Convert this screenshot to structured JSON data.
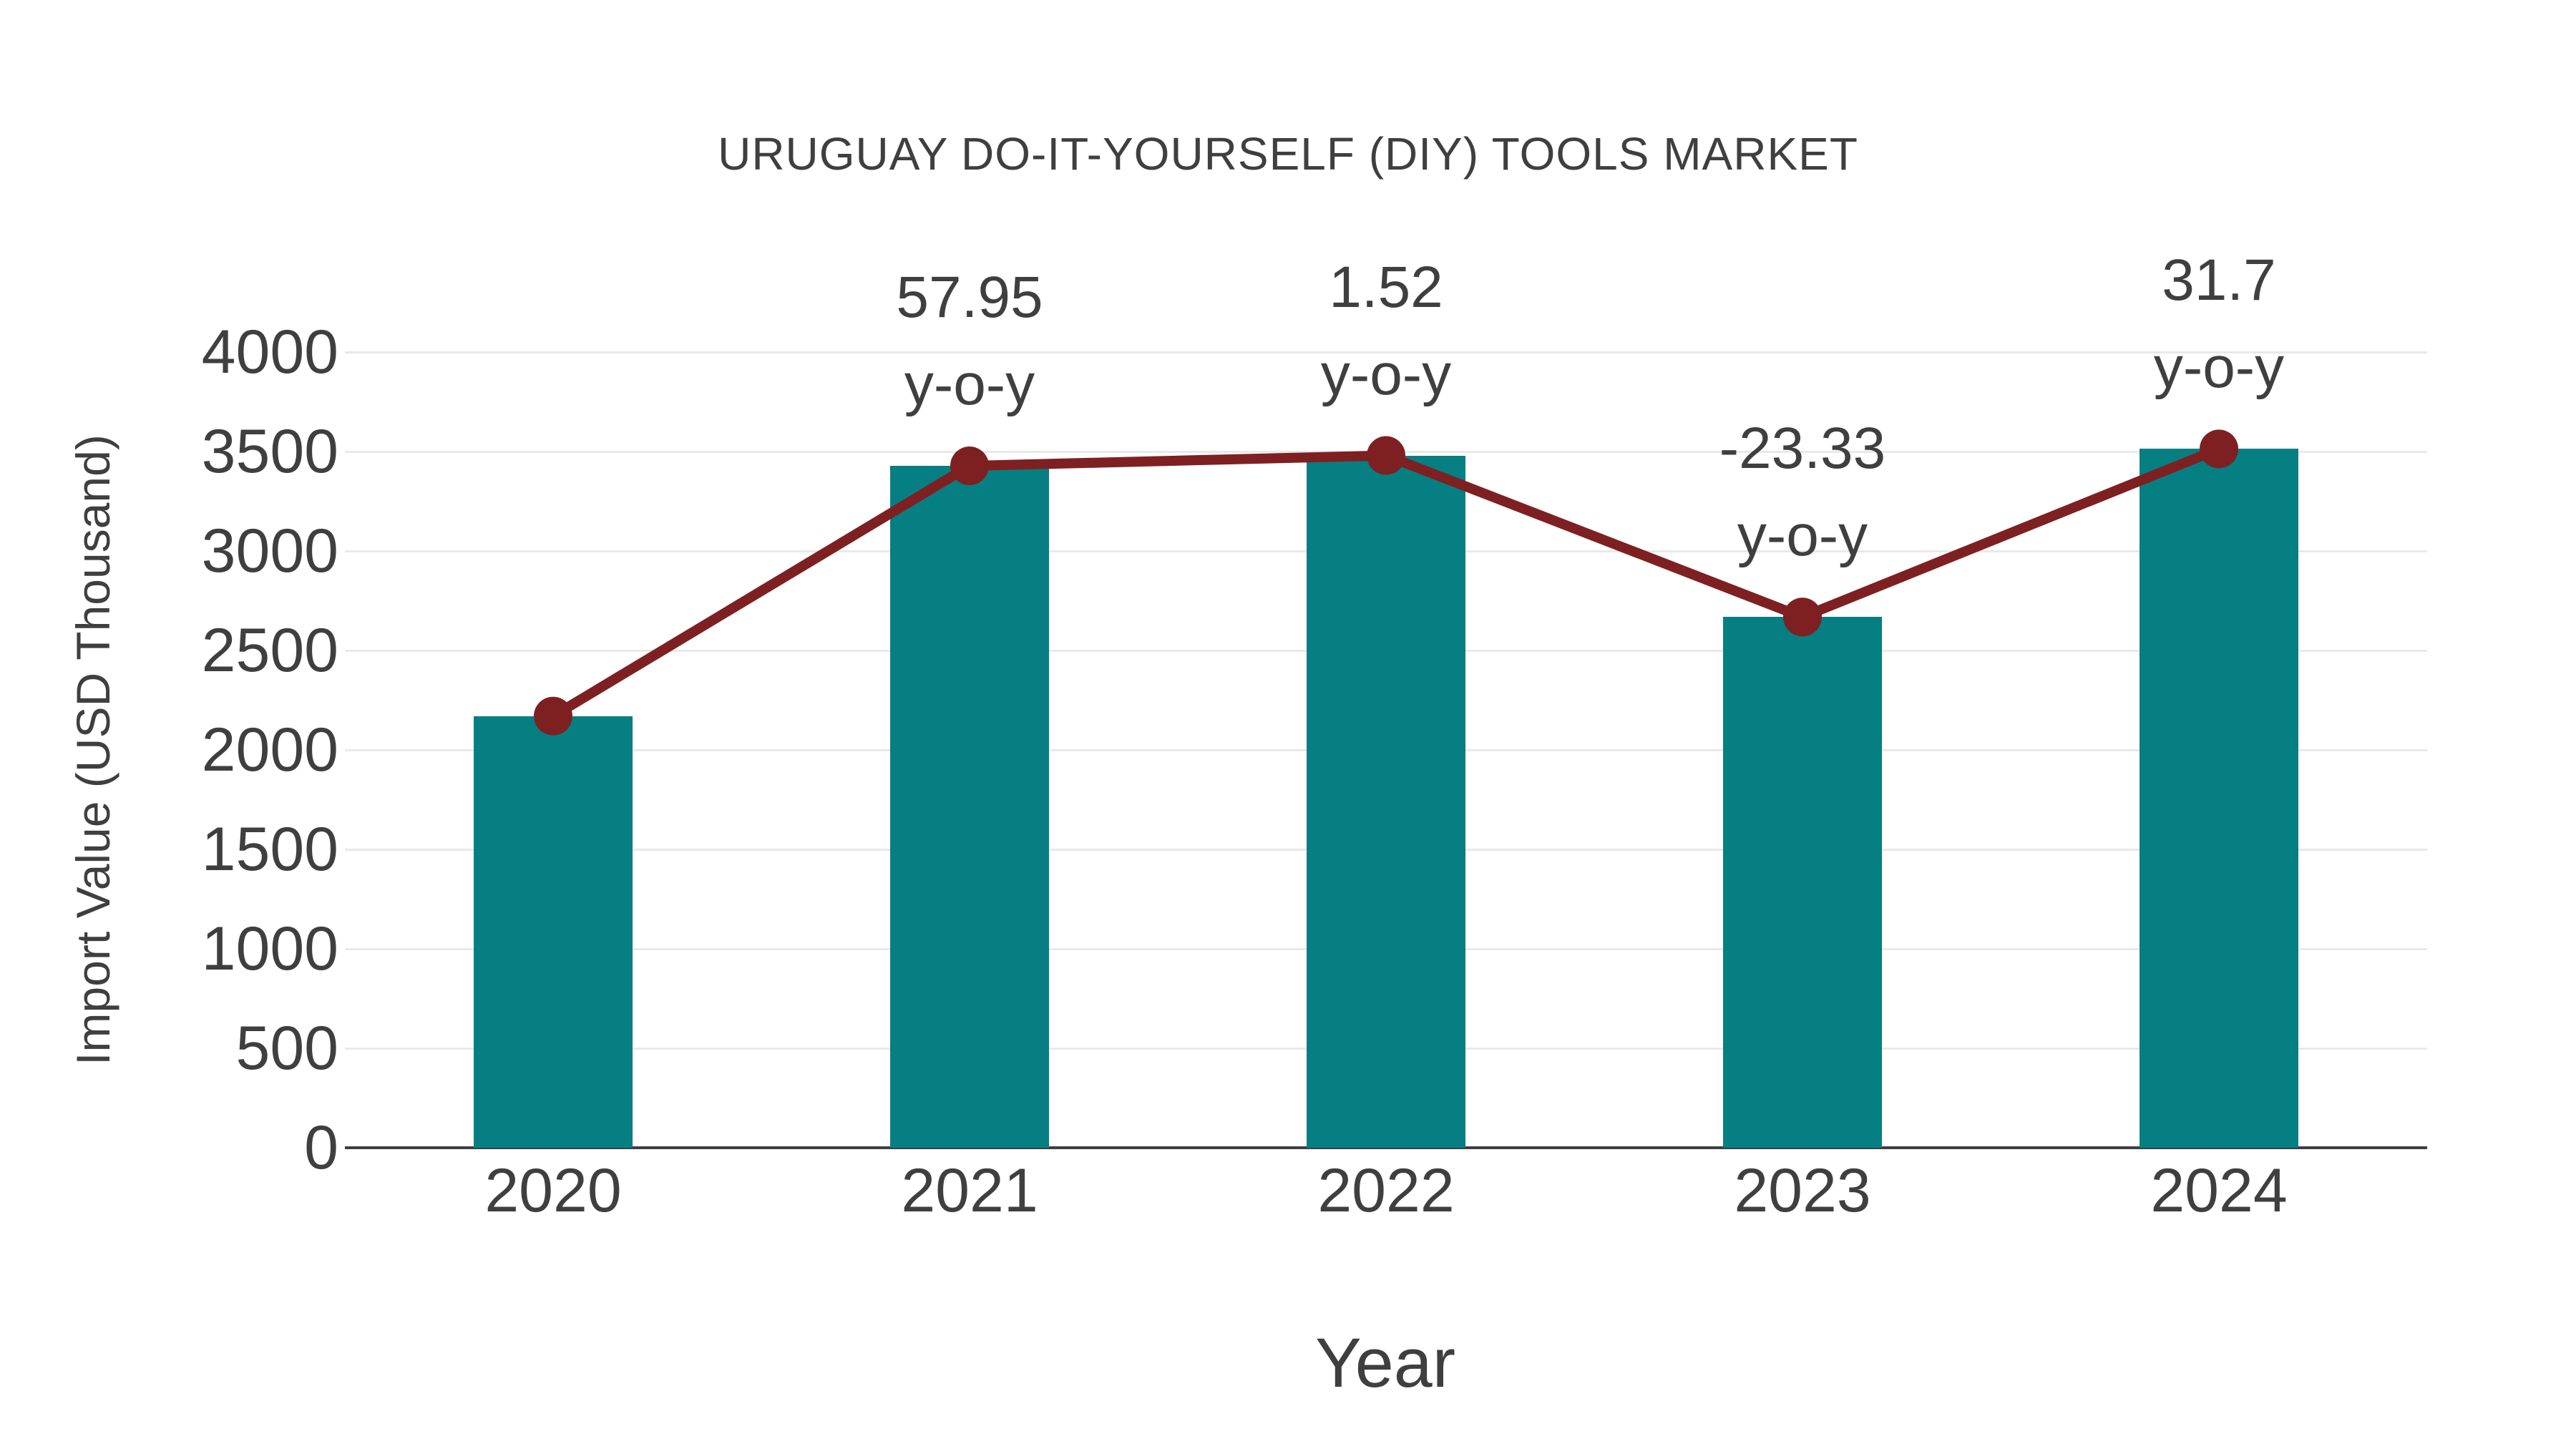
{
  "chart_data": {
    "type": "bar",
    "title": "URUGUAY DO-IT-YOURSELF (DIY) TOOLS MARKET",
    "xlabel": "Year",
    "ylabel": "Import Value (USD Thousand)",
    "categories": [
      "2020",
      "2021",
      "2022",
      "2023",
      "2024"
    ],
    "series": [
      {
        "name": "import-value-bars",
        "type": "bar",
        "values": [
          2170,
          3428,
          3480,
          2668,
          3513
        ],
        "color": "#067f82"
      },
      {
        "name": "import-value-trend-line",
        "type": "line",
        "values": [
          2170,
          3428,
          3480,
          2668,
          3513
        ],
        "color": "#7e2022"
      }
    ],
    "annotations": [
      {
        "category": "2021",
        "line1": "57.95",
        "line2": "y-o-y"
      },
      {
        "category": "2022",
        "line1": "1.52",
        "line2": "y-o-y"
      },
      {
        "category": "2023",
        "line1": "-23.33",
        "line2": "y-o-y"
      },
      {
        "category": "2024",
        "line1": "31.7",
        "line2": "y-o-y"
      }
    ],
    "ylim": [
      0,
      4000
    ],
    "yticks": [
      0,
      500,
      1000,
      1500,
      2000,
      2500,
      3000,
      3500,
      4000
    ],
    "grid": true,
    "legend_position": "none",
    "colors": {
      "bar": "#067f82",
      "line": "#7e2022",
      "text": "#3f3f3f",
      "gridline": "#e9e9e9",
      "axis_line": "#3f3f3f",
      "background": "#ffffff"
    }
  }
}
